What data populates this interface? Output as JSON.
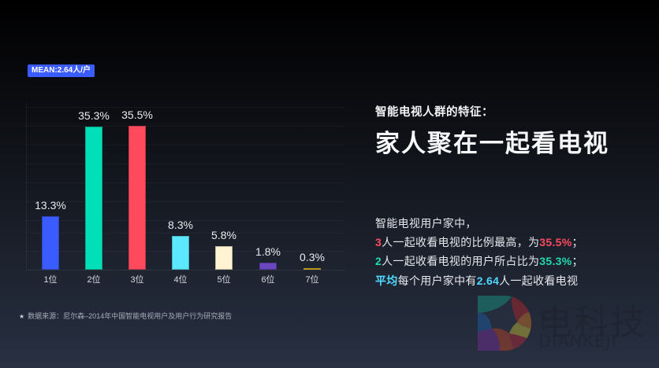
{
  "badge": {
    "mean": "MEAN:2.64人/户"
  },
  "heading": {
    "subtitle": "智能电视人群的特征：",
    "title": "家人聚在一起看电视"
  },
  "description": {
    "line1": "智能电视用户家中，",
    "line2": {
      "num": "3",
      "text": "人一起收看电视的比例最高，为",
      "value": "35.5%",
      "end": "；"
    },
    "line3": {
      "num": "2",
      "text": "人一起收看电视的用户所占比为",
      "value": "35.3%",
      "end": "；"
    },
    "line4": {
      "prefix": "平均",
      "text": "每个用户家中有",
      "value": "2.64",
      "end": "人一起收看电视"
    }
  },
  "source": {
    "star": "★",
    "text": "数据来源：尼尔森–2014年中国智能电视用户及用户行为研究报告"
  },
  "logo": {
    "cn": "电科技",
    "en": "DIANKEJI"
  },
  "colors": {
    "bar1": "#3a5cff",
    "bar2": "#00dfb8",
    "bar3": "#ff4a5e",
    "bar4": "#5ce8ff",
    "bar5": "#fff3d2",
    "bar6": "#6b46c1",
    "bar7": "#f6c62a"
  },
  "chart_data": {
    "type": "bar",
    "title": "",
    "xlabel": "",
    "ylabel": "",
    "categories": [
      "1位",
      "2位",
      "3位",
      "4位",
      "5位",
      "6位",
      "7位"
    ],
    "values": [
      13.3,
      35.3,
      35.5,
      8.3,
      5.8,
      1.8,
      0.3
    ],
    "value_labels": [
      "13.3%",
      "35.3%",
      "35.5%",
      "8.3%",
      "5.8%",
      "1.8%",
      "0.3%"
    ],
    "unit": "%",
    "ylim": [
      0,
      40
    ],
    "grid": true,
    "legend": null,
    "annotation": "MEAN:2.64人/户"
  }
}
